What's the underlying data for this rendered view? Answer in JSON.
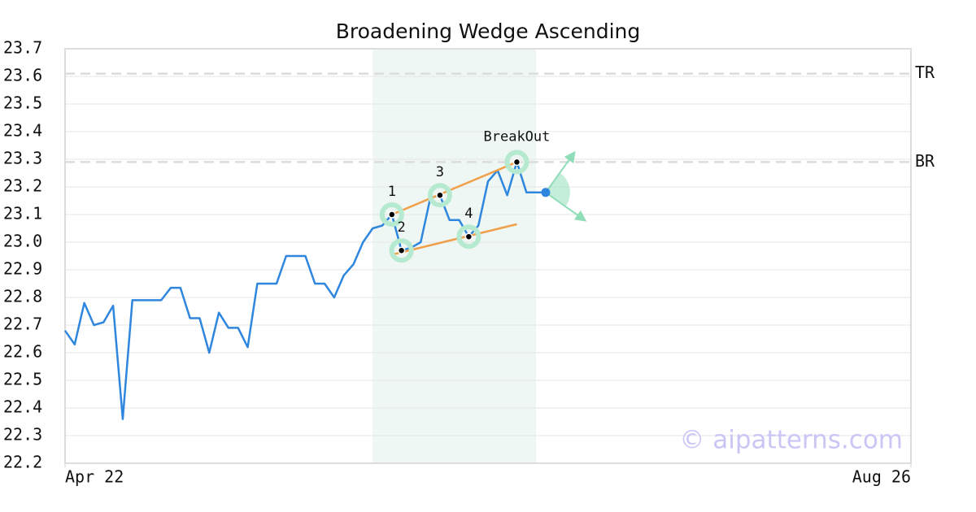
{
  "chart_data": {
    "type": "line",
    "title": "Broadening Wedge Ascending",
    "x": [
      0,
      1,
      2,
      3,
      4,
      5,
      6,
      7,
      8,
      9,
      10,
      11,
      12,
      13,
      14,
      15,
      16,
      17,
      18,
      19,
      20,
      21,
      22,
      23,
      24,
      25,
      26,
      27,
      28,
      29,
      30,
      31,
      32,
      33,
      34,
      35,
      36,
      37,
      38,
      39,
      40,
      41,
      42,
      43,
      44,
      45,
      46,
      47,
      48,
      49,
      50
    ],
    "series": [
      {
        "color": "#2e86de",
        "values": [
          22.68,
          22.63,
          22.78,
          22.7,
          22.71,
          22.77,
          22.36,
          22.79,
          22.79,
          22.79,
          22.79,
          22.835,
          22.835,
          22.725,
          22.725,
          22.6,
          22.745,
          22.69,
          22.69,
          22.62,
          22.85,
          22.85,
          22.85,
          22.95,
          22.95,
          22.95,
          22.85,
          22.85,
          22.8,
          22.88,
          22.92,
          23.0,
          23.05,
          23.06,
          23.1,
          22.97,
          22.98,
          23.0,
          23.16,
          23.17,
          23.08,
          23.08,
          23.02,
          23.06,
          23.22,
          23.26,
          23.17,
          23.29,
          23.18,
          23.18,
          23.18
        ]
      }
    ],
    "xlim": [
      0,
      88
    ],
    "xticks": [
      {
        "value": 0,
        "label": "Apr 22"
      },
      {
        "value": 88,
        "label": "Aug 26"
      }
    ],
    "ylim": [
      22.2,
      23.7
    ],
    "yticks": [
      22.2,
      22.3,
      22.4,
      22.5,
      22.6,
      22.7,
      22.8,
      22.9,
      {
        "value": 23.0,
        "label": "23.0"
      },
      23.1,
      23.2,
      23.3,
      23.4,
      23.5,
      23.6,
      23.7
    ],
    "grid": true,
    "highlight": {
      "xlim": [
        32,
        49
      ],
      "color": "#eef7f3"
    },
    "pattern_points": {
      "labels": [
        "1",
        "2",
        "3",
        "4",
        "BreakOut"
      ],
      "x": [
        34,
        35,
        39,
        42,
        47
      ],
      "values": [
        23.1,
        22.97,
        23.17,
        23.02,
        23.29
      ]
    },
    "trend_lines": [
      {
        "color": "#f0a04b",
        "x": [
          34,
          47
        ],
        "values": [
          23.1,
          23.29
        ]
      },
      {
        "color": "#f0a04b",
        "x": [
          34,
          47
        ],
        "values": [
          22.955,
          23.065
        ]
      }
    ],
    "levels": [
      {
        "label": "TR",
        "value": 23.61
      },
      {
        "label": "BR",
        "value": 23.29
      }
    ],
    "current": {
      "x": 50,
      "value": 23.18,
      "color": "#2e86de"
    },
    "watermark": "© aipatterns.com"
  }
}
